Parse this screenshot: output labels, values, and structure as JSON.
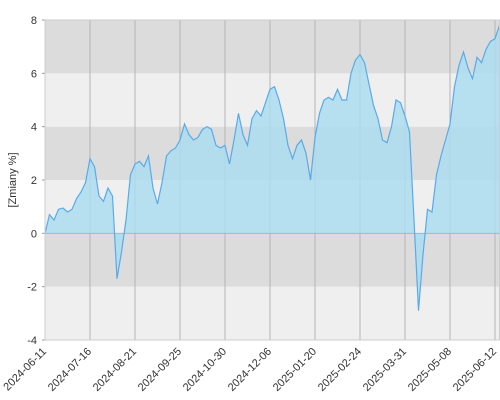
{
  "chart_data": {
    "type": "area",
    "ylabel": "[Zmiany %]",
    "categories": [
      "2024-06-11",
      null,
      null,
      null,
      null,
      null,
      null,
      null,
      null,
      null,
      "2024-07-16",
      null,
      null,
      null,
      null,
      null,
      null,
      null,
      null,
      null,
      "2024-08-21",
      null,
      null,
      null,
      null,
      null,
      null,
      null,
      null,
      null,
      "2024-09-25",
      null,
      null,
      null,
      null,
      null,
      null,
      null,
      null,
      null,
      "2024-10-30",
      null,
      null,
      null,
      null,
      null,
      null,
      null,
      null,
      null,
      "2024-12-06",
      null,
      null,
      null,
      null,
      null,
      null,
      null,
      null,
      null,
      "2025-01-20",
      null,
      null,
      null,
      null,
      null,
      null,
      null,
      null,
      null,
      "2025-02-24",
      null,
      null,
      null,
      null,
      null,
      null,
      null,
      null,
      null,
      "2025-03-31",
      null,
      null,
      null,
      null,
      null,
      null,
      null,
      null,
      null,
      "2025-05-08",
      null,
      null,
      null,
      null,
      null,
      null,
      null,
      null,
      null,
      "2025-06-12",
      null
    ],
    "values": [
      0,
      0.7,
      0.5,
      0.9,
      0.95,
      0.8,
      0.9,
      1.3,
      1.55,
      1.9,
      2.8,
      2.5,
      1.4,
      1.2,
      1.7,
      1.4,
      -1.7,
      -0.7,
      0.5,
      2.2,
      2.6,
      2.7,
      2.5,
      2.9,
      1.7,
      1.1,
      1.9,
      2.9,
      3.1,
      3.2,
      3.5,
      4.1,
      3.7,
      3.5,
      3.6,
      3.9,
      4.0,
      3.9,
      3.3,
      3.2,
      3.3,
      2.6,
      3.5,
      4.5,
      3.7,
      3.3,
      4.3,
      4.6,
      4.4,
      4.9,
      5.4,
      5.5,
      5.0,
      4.3,
      3.3,
      2.8,
      3.3,
      3.5,
      3.0,
      2.0,
      3.6,
      4.5,
      5.0,
      5.1,
      5.0,
      5.4,
      5.0,
      5.0,
      6.0,
      6.5,
      6.7,
      6.4,
      5.6,
      4.8,
      4.3,
      3.5,
      3.4,
      4.0,
      5.0,
      4.9,
      4.4,
      3.8,
      0.5,
      -2.9,
      -0.8,
      0.9,
      0.8,
      2.2,
      2.9,
      3.5,
      4.1,
      5.5,
      6.3,
      6.8,
      6.2,
      5.8,
      6.6,
      6.4,
      6.9,
      7.2,
      7.3,
      7.8
    ],
    "color": "#5aaaea",
    "fill": "#acdcef",
    "ylim": [
      -4,
      8
    ],
    "yticks": [
      -4,
      -2,
      0,
      2,
      4,
      6,
      8
    ],
    "band_colors": [
      "#efefef",
      "#dcdcdc"
    ],
    "grid": true
  }
}
